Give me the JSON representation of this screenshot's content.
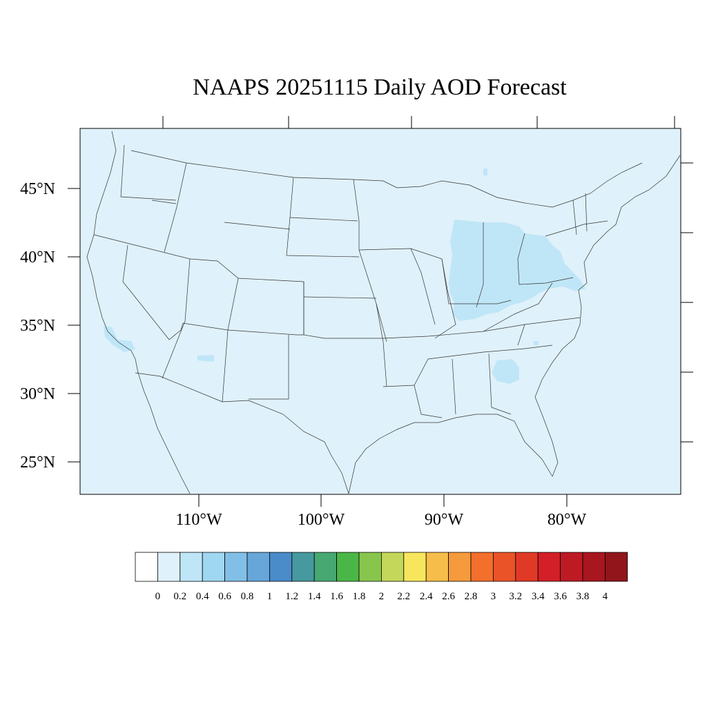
{
  "title": "NAAPS 20251115 Daily AOD Forecast",
  "map": {
    "background_color": "#dff1fa",
    "boundary_color": "#000000",
    "lat_labels": [
      "45°N",
      "40°N",
      "35°N",
      "30°N",
      "25°N"
    ],
    "lon_labels": [
      "110°W",
      "100°W",
      "90°W",
      "80°W"
    ],
    "aod_level_over_most_of_map": "0-0.2",
    "aod_regions_0_2_to_0_4": [
      "Michigan",
      "Indiana",
      "Ohio",
      "Pennsylvania",
      "northern Georgia",
      "southern California",
      "central Arizona"
    ]
  },
  "colorbar": {
    "levels": [
      "0",
      "0.2",
      "0.4",
      "0.6",
      "0.8",
      "1",
      "1.2",
      "1.4",
      "1.6",
      "1.8",
      "2",
      "2.2",
      "2.4",
      "2.6",
      "2.8",
      "3",
      "3.2",
      "3.4",
      "3.6",
      "3.8",
      "4"
    ],
    "colors": [
      "#ffffff",
      "#dff1fa",
      "#bfe6f7",
      "#9fd7f2",
      "#82bfe6",
      "#67a6d9",
      "#4a8bc9",
      "#46999f",
      "#47a872",
      "#4bb648",
      "#88c54d",
      "#c4d75a",
      "#f7e65d",
      "#f7bd4a",
      "#f59b3d",
      "#f26f2c",
      "#ea5328",
      "#e03a26",
      "#d31f27",
      "#bd1a24",
      "#a8161f",
      "#91151b"
    ]
  }
}
